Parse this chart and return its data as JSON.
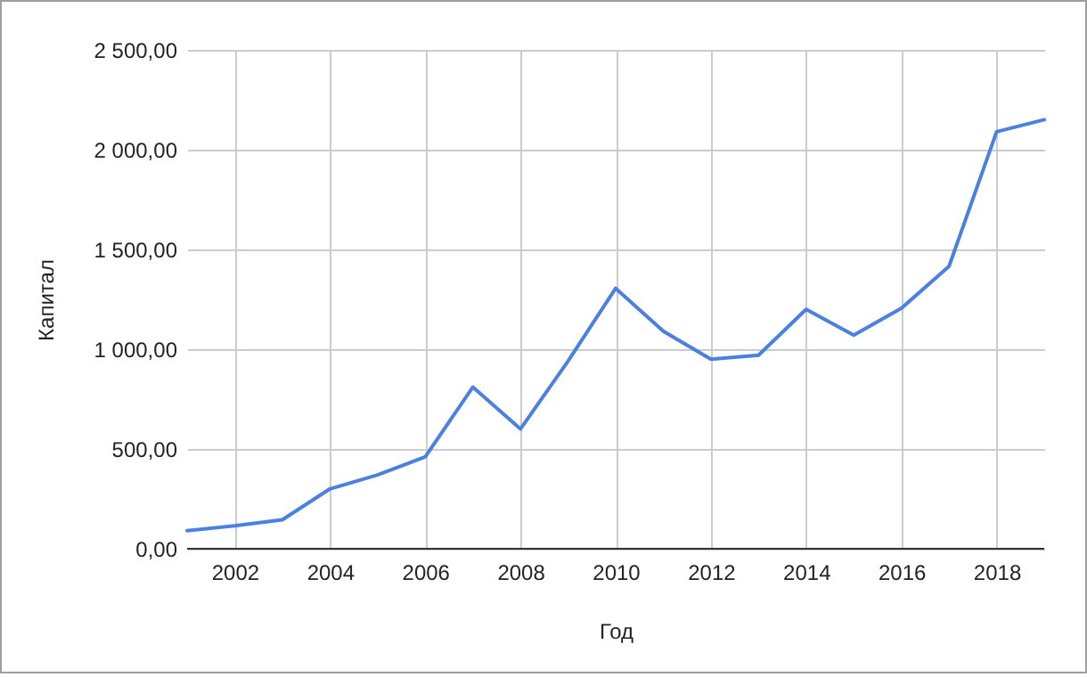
{
  "chart_data": {
    "type": "line",
    "xlabel": "Год",
    "ylabel": "Капитал",
    "x": [
      2001,
      2002,
      2003,
      2004,
      2005,
      2006,
      2007,
      2008,
      2009,
      2010,
      2011,
      2012,
      2013,
      2014,
      2015,
      2016,
      2017,
      2018,
      2019
    ],
    "series": [
      {
        "color": "#4a80e0",
        "values": [
          90,
          115,
          145,
          300,
          370,
          460,
          810,
          600,
          940,
          1305,
          1090,
          950,
          970,
          1200,
          1070,
          1205,
          1415,
          2090,
          2150
        ]
      }
    ],
    "xlim": [
      2001,
      2019
    ],
    "xticks": [
      2002,
      2004,
      2006,
      2008,
      2010,
      2012,
      2014,
      2016,
      2018
    ],
    "ylim": [
      0,
      2500
    ],
    "yticks": [
      {
        "value": 0,
        "label": "0,00"
      },
      {
        "value": 500,
        "label": "500,00"
      },
      {
        "value": 1000,
        "label": "1 000,00"
      },
      {
        "value": 1500,
        "label": "1 500,00"
      },
      {
        "value": 2000,
        "label": "2 000,00"
      },
      {
        "value": 2500,
        "label": "2 500,00"
      }
    ],
    "grid": true,
    "legend": false,
    "marker": "none",
    "line_style": "solid"
  }
}
